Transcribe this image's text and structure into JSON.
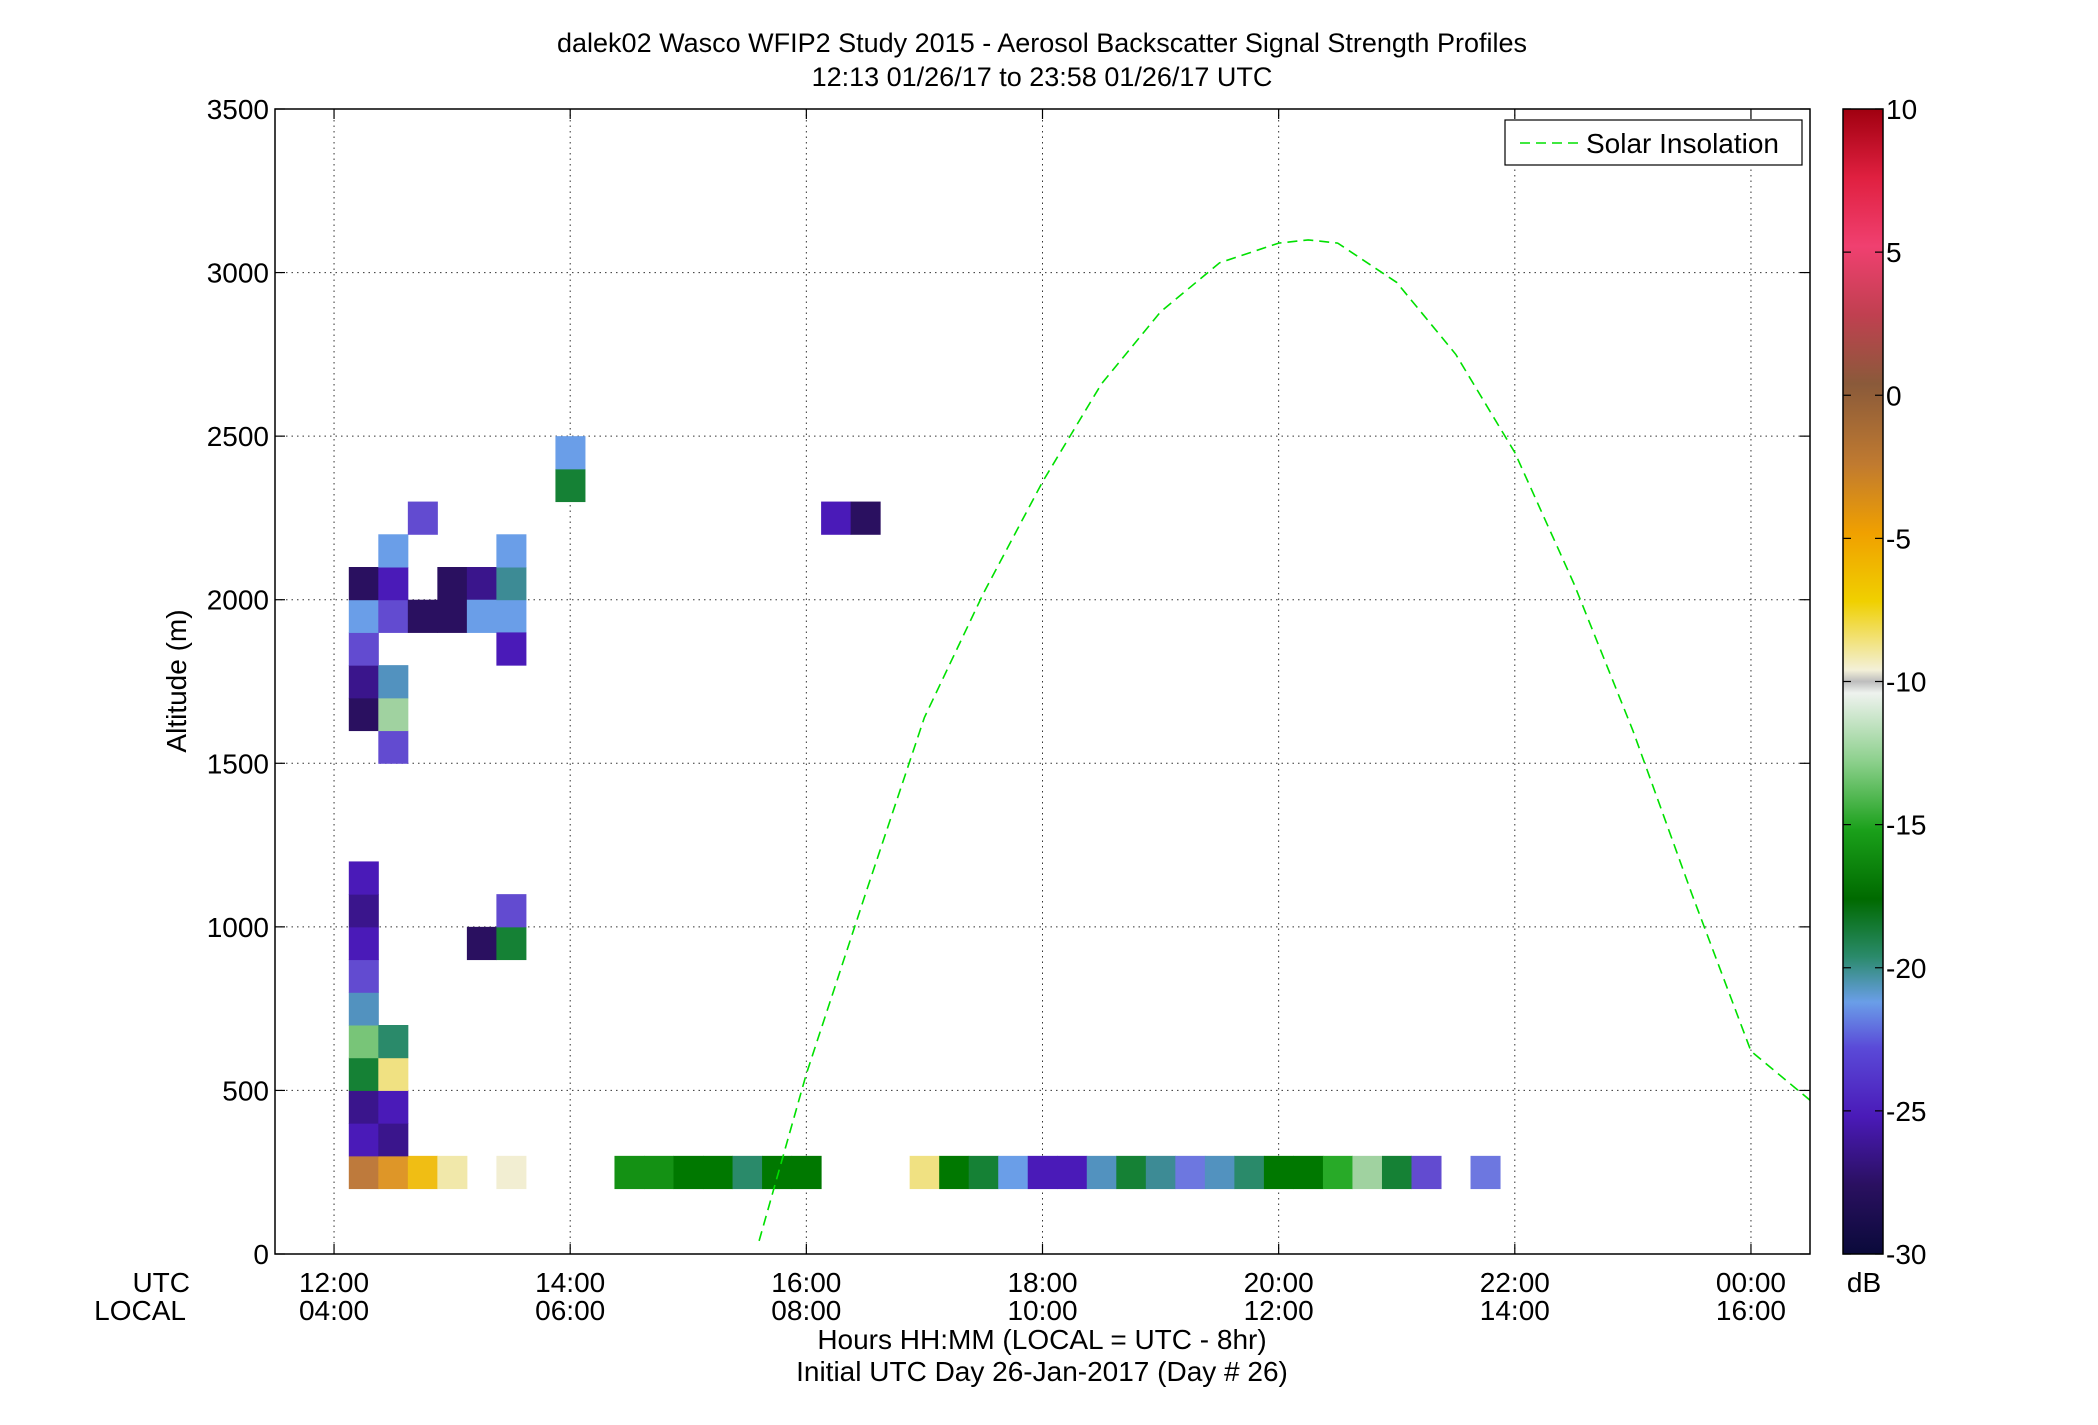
{
  "figure": {
    "title_line1": "dalek02 Wasco WFIP2 Study 2015 - Aerosol Backscatter Signal Strength Profiles",
    "title_line2": "12:13 01/26/17 to 23:58 01/26/17  UTC",
    "ylabel": "Altitude (m)",
    "xlabel_row1": "UTC",
    "xlabel_row2": "LOCAL",
    "xlabel_line1": "Hours HH:MM  (LOCAL = UTC - 8hr)",
    "xlabel_line2": "Initial UTC Day 26-Jan-2017 (Day # 26)",
    "colorbar_unit": "dB"
  },
  "chart_data": {
    "type": "heatmap",
    "x_unit": "hours UTC since 00:00 26-Jan-2017",
    "xlim": [
      11.5,
      24.5
    ],
    "ylim": [
      0,
      3500
    ],
    "grid": true,
    "yticks": [
      0,
      500,
      1000,
      1500,
      2000,
      2500,
      3000,
      3500
    ],
    "xticks": [
      {
        "utc": "12:00",
        "local": "04:00",
        "value": 12
      },
      {
        "utc": "14:00",
        "local": "06:00",
        "value": 14
      },
      {
        "utc": "16:00",
        "local": "08:00",
        "value": 16
      },
      {
        "utc": "18:00",
        "local": "10:00",
        "value": 18
      },
      {
        "utc": "20:00",
        "local": "12:00",
        "value": 20
      },
      {
        "utc": "22:00",
        "local": "14:00",
        "value": 22
      },
      {
        "utc": "00:00",
        "local": "16:00",
        "value": 24
      }
    ],
    "colorbar": {
      "range": [
        -30,
        10
      ],
      "ticks": [
        10,
        5,
        0,
        -5,
        -10,
        -15,
        -20,
        -25,
        -30
      ],
      "unit": "dB"
    },
    "cell_size": {
      "dx_hours": 0.25,
      "dy_m": 100
    },
    "cells": [
      {
        "x": 12.25,
        "y": 250,
        "db": -0.5
      },
      {
        "x": 12.5,
        "y": 250,
        "db": -3
      },
      {
        "x": 12.75,
        "y": 250,
        "db": -5
      },
      {
        "x": 13.0,
        "y": 250,
        "db": -8
      },
      {
        "x": 13.5,
        "y": 250,
        "db": -9
      },
      {
        "x": 12.25,
        "y": 350,
        "db": -26
      },
      {
        "x": 12.25,
        "y": 450,
        "db": -27
      },
      {
        "x": 12.25,
        "y": 550,
        "db": -19
      },
      {
        "x": 12.25,
        "y": 650,
        "db": -14
      },
      {
        "x": 12.25,
        "y": 750,
        "db": -22
      },
      {
        "x": 12.25,
        "y": 850,
        "db": -25
      },
      {
        "x": 12.25,
        "y": 950,
        "db": -26
      },
      {
        "x": 12.25,
        "y": 1050,
        "db": -27
      },
      {
        "x": 12.25,
        "y": 1150,
        "db": -26
      },
      {
        "x": 12.5,
        "y": 350,
        "db": -27
      },
      {
        "x": 12.5,
        "y": 450,
        "db": -26
      },
      {
        "x": 12.5,
        "y": 550,
        "db": -7
      },
      {
        "x": 12.5,
        "y": 650,
        "db": -20
      },
      {
        "x": 13.25,
        "y": 950,
        "db": -28
      },
      {
        "x": 13.5,
        "y": 950,
        "db": -19
      },
      {
        "x": 13.5,
        "y": 1050,
        "db": -25
      },
      {
        "x": 12.25,
        "y": 1650,
        "db": -28
      },
      {
        "x": 12.25,
        "y": 1750,
        "db": -27
      },
      {
        "x": 12.25,
        "y": 1850,
        "db": -25
      },
      {
        "x": 12.25,
        "y": 1950,
        "db": -23
      },
      {
        "x": 12.25,
        "y": 2050,
        "db": -28
      },
      {
        "x": 12.5,
        "y": 1550,
        "db": -25
      },
      {
        "x": 12.5,
        "y": 1650,
        "db": -13
      },
      {
        "x": 12.5,
        "y": 1750,
        "db": -22
      },
      {
        "x": 12.5,
        "y": 1950,
        "db": -25
      },
      {
        "x": 12.5,
        "y": 2050,
        "db": -26
      },
      {
        "x": 12.5,
        "y": 2150,
        "db": -23
      },
      {
        "x": 12.75,
        "y": 2250,
        "db": -25
      },
      {
        "x": 12.75,
        "y": 1950,
        "db": -28
      },
      {
        "x": 13.0,
        "y": 1950,
        "db": -28
      },
      {
        "x": 13.0,
        "y": 2050,
        "db": -28
      },
      {
        "x": 13.25,
        "y": 2050,
        "db": -27
      },
      {
        "x": 13.25,
        "y": 1950,
        "db": -23
      },
      {
        "x": 13.5,
        "y": 1950,
        "db": -23
      },
      {
        "x": 13.5,
        "y": 2050,
        "db": -21
      },
      {
        "x": 13.5,
        "y": 2150,
        "db": -23
      },
      {
        "x": 13.5,
        "y": 1850,
        "db": -26
      },
      {
        "x": 14.0,
        "y": 2350,
        "db": -19
      },
      {
        "x": 14.0,
        "y": 2450,
        "db": -23
      },
      {
        "x": 16.25,
        "y": 2250,
        "db": -26
      },
      {
        "x": 16.5,
        "y": 2250,
        "db": -28
      },
      {
        "x": 14.5,
        "y": 250,
        "db": -17
      },
      {
        "x": 14.75,
        "y": 250,
        "db": -17
      },
      {
        "x": 15.0,
        "y": 250,
        "db": -18
      },
      {
        "x": 15.25,
        "y": 250,
        "db": -18
      },
      {
        "x": 15.5,
        "y": 250,
        "db": -20
      },
      {
        "x": 15.75,
        "y": 250,
        "db": -18
      },
      {
        "x": 16.0,
        "y": 250,
        "db": -18
      },
      {
        "x": 17.0,
        "y": 250,
        "db": -7
      },
      {
        "x": 17.25,
        "y": 250,
        "db": -18
      },
      {
        "x": 17.5,
        "y": 250,
        "db": -19
      },
      {
        "x": 17.75,
        "y": 250,
        "db": -23
      },
      {
        "x": 18.0,
        "y": 250,
        "db": -26
      },
      {
        "x": 18.25,
        "y": 250,
        "db": -26
      },
      {
        "x": 18.5,
        "y": 250,
        "db": -22
      },
      {
        "x": 18.75,
        "y": 250,
        "db": -19
      },
      {
        "x": 19.0,
        "y": 250,
        "db": -21
      },
      {
        "x": 19.25,
        "y": 250,
        "db": -24
      },
      {
        "x": 19.5,
        "y": 250,
        "db": -22
      },
      {
        "x": 19.75,
        "y": 250,
        "db": -20
      },
      {
        "x": 20.0,
        "y": 250,
        "db": -18
      },
      {
        "x": 20.25,
        "y": 250,
        "db": -18
      },
      {
        "x": 20.5,
        "y": 250,
        "db": -16
      },
      {
        "x": 20.75,
        "y": 250,
        "db": -13
      },
      {
        "x": 21.0,
        "y": 250,
        "db": -19
      },
      {
        "x": 21.25,
        "y": 250,
        "db": -25
      },
      {
        "x": 21.75,
        "y": 250,
        "db": -24
      }
    ],
    "series": [
      {
        "name": "Solar Insolation",
        "style": "dashed",
        "color": "#00e000",
        "x": [
          15.6,
          16.0,
          16.5,
          17.0,
          17.5,
          18.0,
          18.5,
          19.0,
          19.5,
          20.0,
          20.25,
          20.5,
          21.0,
          21.5,
          22.0,
          22.5,
          23.0,
          23.5,
          24.0,
          24.5
        ],
        "y": [
          40,
          550,
          1100,
          1640,
          2020,
          2360,
          2660,
          2880,
          3030,
          3090,
          3100,
          3090,
          2970,
          2750,
          2450,
          2050,
          1600,
          1100,
          620,
          470
        ]
      }
    ],
    "legend": {
      "position": "top-right",
      "entries": [
        "Solar Insolation"
      ]
    }
  }
}
